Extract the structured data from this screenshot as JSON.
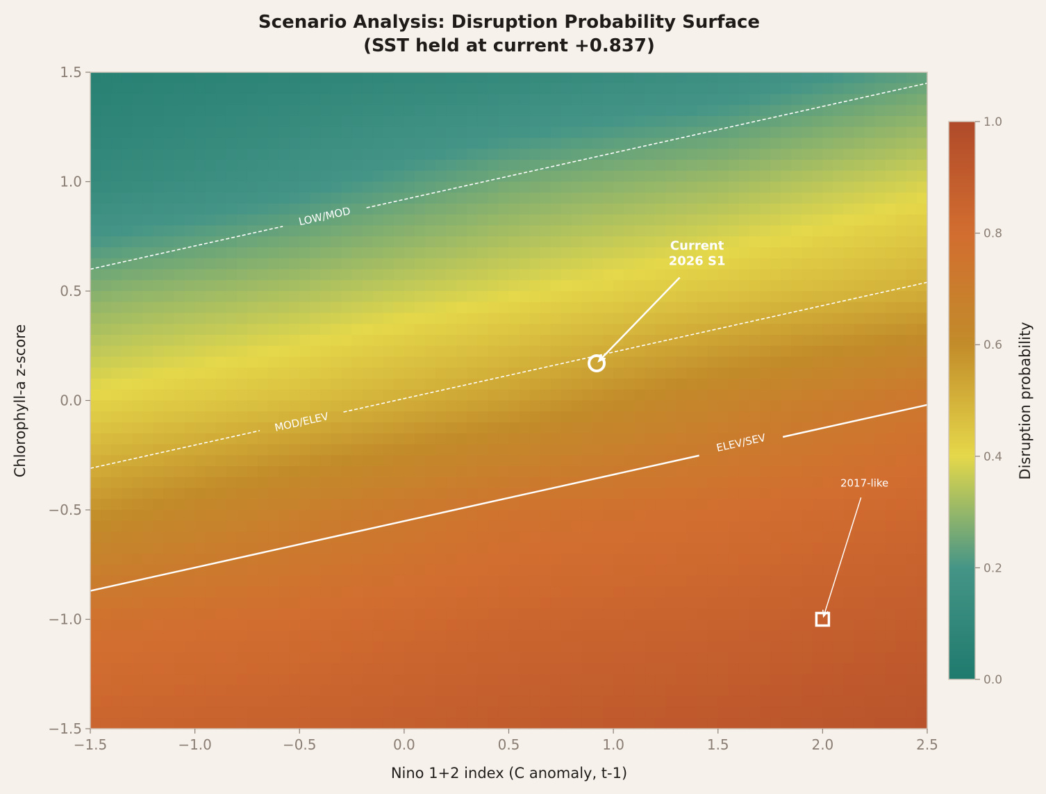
{
  "chart_data": {
    "type": "heatmap",
    "title": "Scenario Analysis: Disruption Probability Surface",
    "subtitle": "(SST held at current +0.837)",
    "xlabel": "Nino 1+2 index (C anomaly, t-1)",
    "ylabel": "Chlorophyll-a z-score",
    "xlim": [
      -1.5,
      2.5
    ],
    "ylim": [
      -1.5,
      1.5
    ],
    "xticks": [
      "−1.5",
      "−1.0",
      "−0.5",
      "0.0",
      "0.5",
      "1.0",
      "1.5",
      "2.0",
      "2.5"
    ],
    "yticks": [
      "−1.5",
      "−1.0",
      "−0.5",
      "0.0",
      "0.5",
      "1.0",
      "1.5"
    ],
    "xtick_values": [
      -1.5,
      -1.0,
      -0.5,
      0.0,
      0.5,
      1.0,
      1.5,
      2.0,
      2.5
    ],
    "ytick_values": [
      -1.5,
      -1.0,
      -0.5,
      0.0,
      0.5,
      1.0,
      1.5
    ],
    "grid": false,
    "surface": {
      "x": [
        -1.5,
        -0.5,
        0.5,
        1.5,
        2.5
      ],
      "y": [
        1.5,
        1.0,
        0.5,
        0.0,
        -0.5,
        -1.0,
        -1.5
      ],
      "z": [
        [
          0.05,
          0.08,
          0.11,
          0.15,
          0.23
        ],
        [
          0.115,
          0.18,
          0.26,
          0.31,
          0.38
        ],
        [
          0.28,
          0.33,
          0.39,
          0.45,
          0.51
        ],
        [
          0.41,
          0.47,
          0.55,
          0.65,
          0.74
        ],
        [
          0.58,
          0.68,
          0.76,
          0.79,
          0.83
        ],
        [
          0.77,
          0.8,
          0.84,
          0.86,
          0.89
        ],
        [
          0.85,
          0.87,
          0.9,
          0.92,
          0.95
        ]
      ]
    },
    "colorbar": {
      "label": "Disruption probability",
      "range": [
        0.0,
        1.0
      ],
      "ticks": [
        "0.0",
        "0.2",
        "0.4",
        "0.6",
        "0.8",
        "1.0"
      ],
      "tick_values": [
        0.0,
        0.2,
        0.4,
        0.6,
        0.8,
        1.0
      ],
      "colormap": [
        {
          "value": 0.0,
          "color": "#1e7a6d"
        },
        {
          "value": 0.2,
          "color": "#459587"
        },
        {
          "value": 0.4,
          "color": "#e5d84a"
        },
        {
          "value": 0.6,
          "color": "#c28c2a"
        },
        {
          "value": 0.8,
          "color": "#d26d30"
        },
        {
          "value": 1.0,
          "color": "#b04a2a"
        }
      ]
    },
    "contours": [
      {
        "label": "LOW/MOD",
        "style": "dashed",
        "from": [
          -1.5,
          0.6
        ],
        "to": [
          2.5,
          1.45
        ],
        "label_at": [
          -0.38,
          0.84
        ]
      },
      {
        "label": "MOD/ELEV",
        "style": "dashed",
        "from": [
          -1.5,
          -0.31
        ],
        "to": [
          2.5,
          0.54
        ],
        "label_at": [
          -0.49,
          -0.1
        ]
      },
      {
        "label": "ELEV/SEV",
        "style": "solid",
        "from": [
          -1.5,
          -0.87
        ],
        "to": [
          2.5,
          -0.02
        ],
        "label_at": [
          1.61,
          -0.195
        ]
      }
    ],
    "markers": [
      {
        "label_lines": [
          "Current",
          "2026 S1"
        ],
        "shape": "circle",
        "x": 0.92,
        "y": 0.17,
        "label_at": [
          1.4,
          0.67
        ],
        "bold": true
      },
      {
        "label_lines": [
          "2017-like"
        ],
        "shape": "square",
        "x": 2.0,
        "y": -1.0,
        "label_at": [
          2.2,
          -0.38
        ],
        "bold": false
      }
    ]
  }
}
